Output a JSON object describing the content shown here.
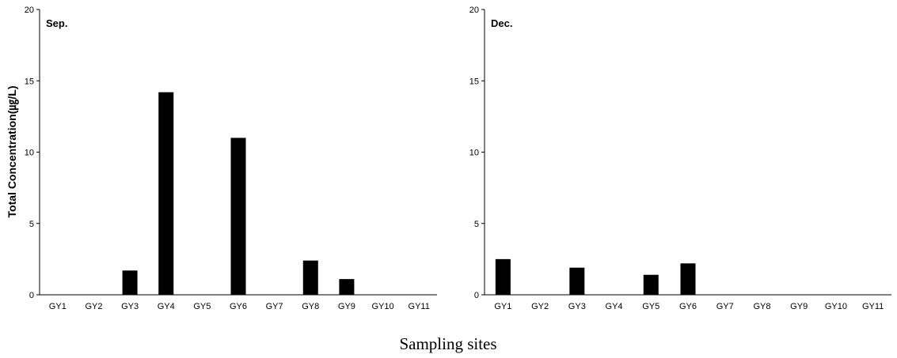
{
  "chart_data": [
    {
      "type": "bar",
      "title": "Sep.",
      "categories": [
        "GY1",
        "GY2",
        "GY3",
        "GY4",
        "GY5",
        "GY6",
        "GY7",
        "GY8",
        "GY9",
        "GY10",
        "GY11"
      ],
      "values": [
        0,
        0,
        1.7,
        14.2,
        0,
        11.0,
        0,
        2.4,
        1.1,
        0,
        0
      ],
      "ylim": [
        0,
        20
      ],
      "yticks": [
        0,
        5,
        10,
        15,
        20
      ],
      "ylabel": "Total Concentration(㎍/L)",
      "xlabel": "",
      "grid": false,
      "bar_color": "#000000"
    },
    {
      "type": "bar",
      "title": "Dec.",
      "categories": [
        "GY1",
        "GY2",
        "GY3",
        "GY4",
        "GY5",
        "GY6",
        "GY7",
        "GY8",
        "GY9",
        "GY10",
        "GY11"
      ],
      "values": [
        2.5,
        0,
        1.9,
        0,
        1.4,
        2.2,
        0,
        0,
        0,
        0,
        0
      ],
      "ylim": [
        0,
        20
      ],
      "yticks": [
        0,
        5,
        10,
        15,
        20
      ],
      "ylabel": "",
      "xlabel": "",
      "grid": false,
      "bar_color": "#000000"
    }
  ],
  "shared_xlabel": "Sampling sites"
}
